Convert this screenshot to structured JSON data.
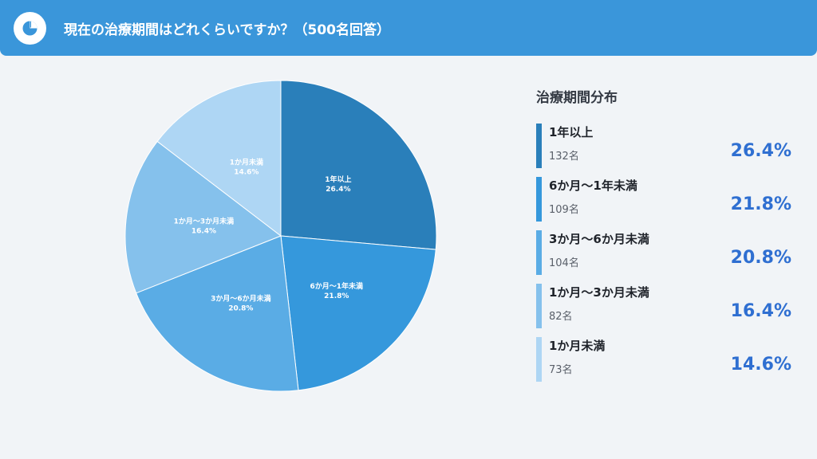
{
  "header": {
    "title": "現在の治療期間はどれくらいですか？（500名回答）",
    "icon": "pie-chart-icon"
  },
  "legend_title": "治療期間分布",
  "colors": {
    "header_bg": "#3a96da",
    "accent_text": "#2f6fd1"
  },
  "chart_data": {
    "type": "pie",
    "title": "治療期間分布",
    "slices": [
      {
        "label": "1年以上",
        "count_label": "132名",
        "value": 26.4,
        "pct_label": "26.4%",
        "color": "#2a7fba"
      },
      {
        "label": "6か月〜1年未満",
        "count_label": "109名",
        "value": 21.8,
        "pct_label": "21.8%",
        "color": "#3598dc"
      },
      {
        "label": "3か月〜6か月未満",
        "count_label": "104名",
        "value": 20.8,
        "pct_label": "20.8%",
        "color": "#5aace5"
      },
      {
        "label": "1か月〜3か月未満",
        "count_label": "82名",
        "value": 16.4,
        "pct_label": "16.4%",
        "color": "#85c1ec"
      },
      {
        "label": "1か月未満",
        "count_label": "73名",
        "value": 14.6,
        "pct_label": "14.6%",
        "color": "#aed6f4"
      }
    ]
  }
}
